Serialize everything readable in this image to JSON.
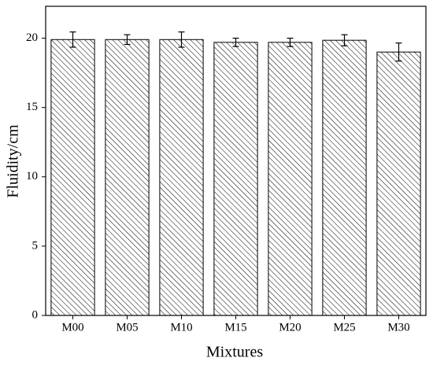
{
  "chart_data": {
    "type": "bar",
    "x_label": "Mixtures",
    "y_label": "Fluidity/cm",
    "categories": [
      "M00",
      "M05",
      "M10",
      "M15",
      "M20",
      "M25",
      "M30"
    ],
    "values": [
      19.9,
      19.9,
      19.9,
      19.7,
      19.7,
      19.85,
      19.0
    ],
    "errors": [
      0.55,
      0.35,
      0.55,
      0.3,
      0.3,
      0.4,
      0.65
    ],
    "color": "#000000",
    "ylim": [
      0,
      22.3
    ],
    "yticks": [
      0,
      5,
      10,
      15,
      20
    ],
    "grid": false
  }
}
